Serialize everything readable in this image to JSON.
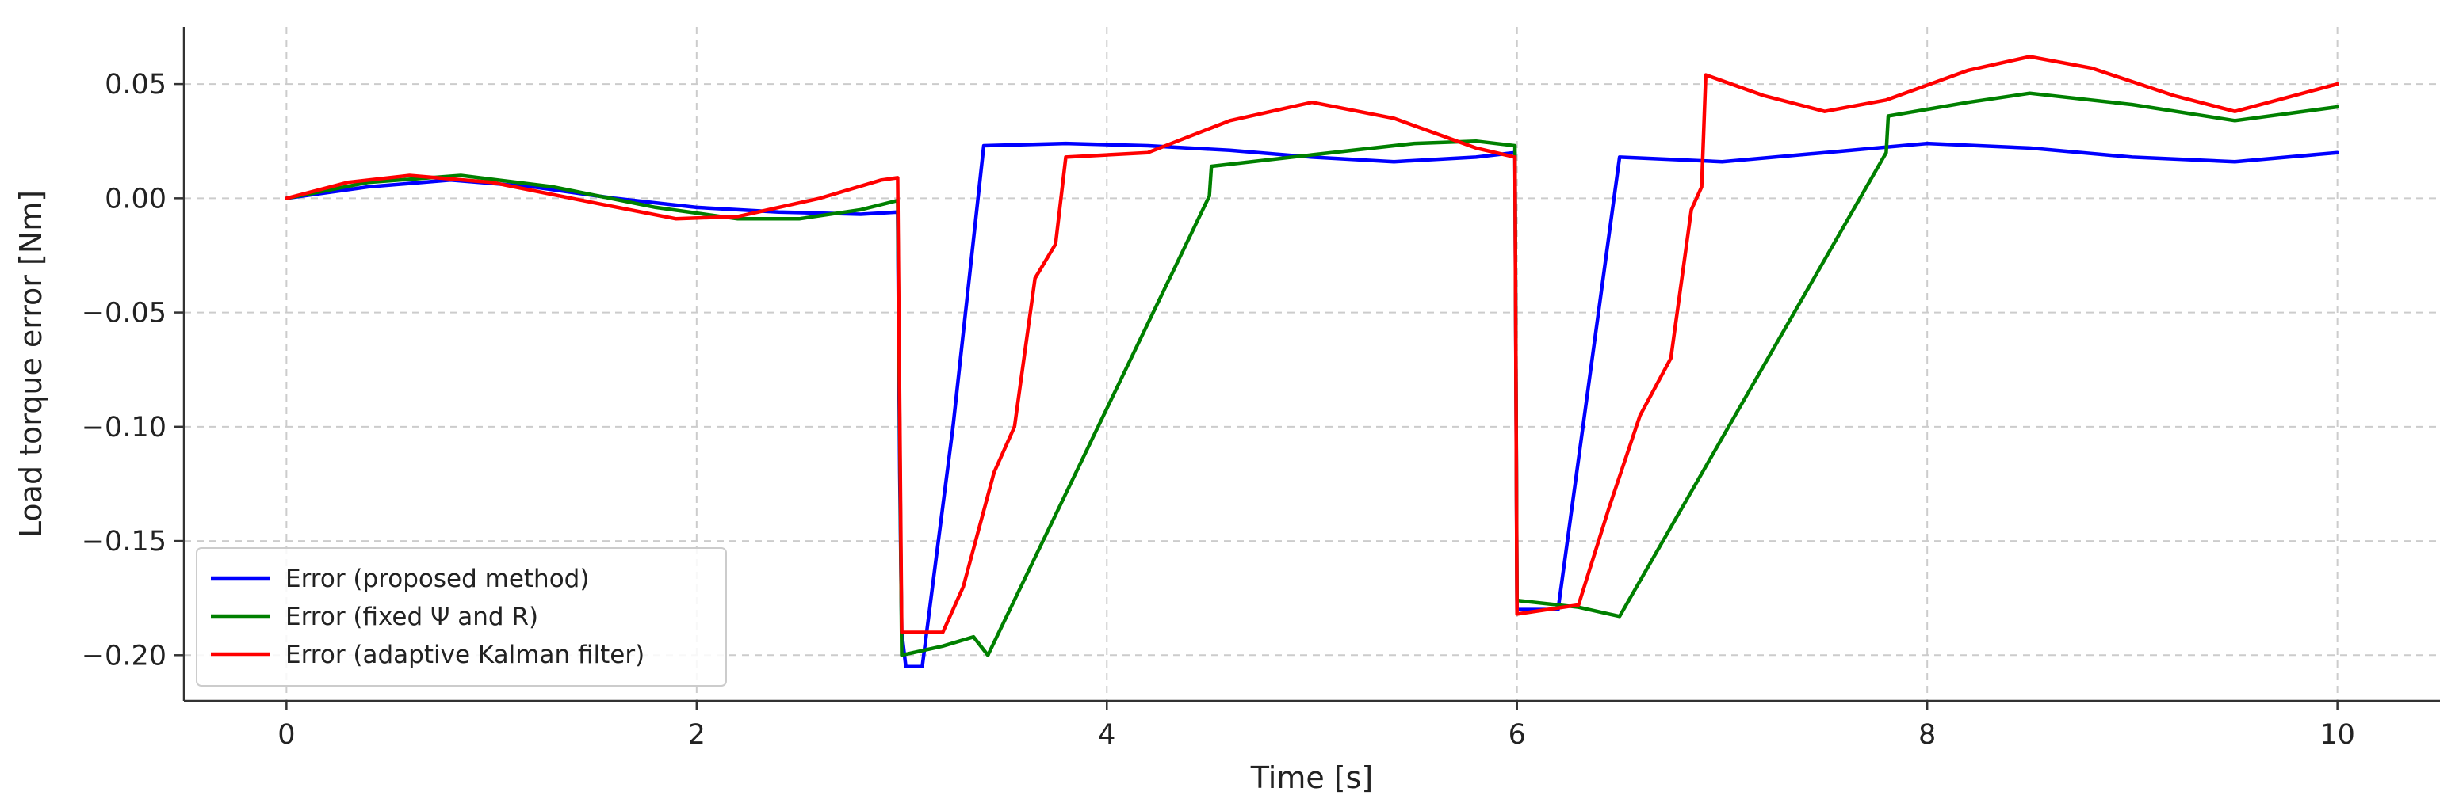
{
  "chart_data": {
    "type": "line",
    "title": "",
    "xlabel": "Time [s]",
    "ylabel": "Load torque error [Nm]",
    "xlim": [
      -0.5,
      10.5
    ],
    "ylim": [
      -0.22,
      0.075
    ],
    "xticks": [
      0,
      2,
      4,
      6,
      8,
      10
    ],
    "xtick_labels": [
      "0",
      "2",
      "4",
      "6",
      "8",
      "10"
    ],
    "yticks": [
      0.05,
      0.0,
      -0.05,
      -0.1,
      -0.15,
      -0.2
    ],
    "ytick_labels": [
      "0.05",
      "0.00",
      "−0.05",
      "−0.10",
      "−0.15",
      "−0.20"
    ],
    "grid": true,
    "legend_position": "lower-left",
    "series": [
      {
        "name": "Error (proposed method)",
        "color": "#0000ff",
        "points": [
          [
            0,
            0
          ],
          [
            0.4,
            0.005
          ],
          [
            0.8,
            0.008
          ],
          [
            1.2,
            0.005
          ],
          [
            1.6,
            0.0
          ],
          [
            2.0,
            -0.004
          ],
          [
            2.4,
            -0.006
          ],
          [
            2.8,
            -0.007
          ],
          [
            2.98,
            -0.006
          ],
          [
            2.99,
            -0.12
          ],
          [
            3.0,
            -0.19
          ],
          [
            3.02,
            -0.205
          ],
          [
            3.1,
            -0.205
          ],
          [
            3.25,
            -0.1
          ],
          [
            3.4,
            0.023
          ],
          [
            3.8,
            0.024
          ],
          [
            4.2,
            0.023
          ],
          [
            4.6,
            0.021
          ],
          [
            5.0,
            0.018
          ],
          [
            5.4,
            0.016
          ],
          [
            5.8,
            0.018
          ],
          [
            5.99,
            0.02
          ],
          [
            6.0,
            -0.18
          ],
          [
            6.2,
            -0.18
          ],
          [
            6.5,
            0.018
          ],
          [
            7.0,
            0.016
          ],
          [
            7.5,
            0.02
          ],
          [
            8.0,
            0.024
          ],
          [
            8.5,
            0.022
          ],
          [
            9.0,
            0.018
          ],
          [
            9.5,
            0.016
          ],
          [
            10.0,
            0.02
          ]
        ]
      },
      {
        "name": "Error (fixed Ψ and R)",
        "color": "#008000",
        "points": [
          [
            0,
            0
          ],
          [
            0.4,
            0.007
          ],
          [
            0.85,
            0.01
          ],
          [
            1.3,
            0.005
          ],
          [
            1.8,
            -0.004
          ],
          [
            2.2,
            -0.009
          ],
          [
            2.5,
            -0.009
          ],
          [
            2.8,
            -0.005
          ],
          [
            2.98,
            -0.001
          ],
          [
            3.0,
            -0.2
          ],
          [
            3.2,
            -0.196
          ],
          [
            3.35,
            -0.192
          ],
          [
            3.42,
            -0.2
          ],
          [
            4.5,
            0.001
          ],
          [
            4.51,
            0.014
          ],
          [
            5.0,
            0.019
          ],
          [
            5.5,
            0.024
          ],
          [
            5.8,
            0.025
          ],
          [
            5.99,
            0.023
          ],
          [
            6.0,
            -0.176
          ],
          [
            6.3,
            -0.179
          ],
          [
            6.5,
            -0.183
          ],
          [
            7.8,
            0.02
          ],
          [
            7.81,
            0.036
          ],
          [
            8.2,
            0.042
          ],
          [
            8.5,
            0.046
          ],
          [
            9.0,
            0.041
          ],
          [
            9.5,
            0.034
          ],
          [
            10.0,
            0.04
          ]
        ]
      },
      {
        "name": "Error (adaptive Kalman filter)",
        "color": "#ff0000",
        "points": [
          [
            0,
            0
          ],
          [
            0.3,
            0.007
          ],
          [
            0.6,
            0.01
          ],
          [
            1.0,
            0.007
          ],
          [
            1.5,
            -0.002
          ],
          [
            1.9,
            -0.009
          ],
          [
            2.2,
            -0.008
          ],
          [
            2.6,
            0.0
          ],
          [
            2.9,
            0.008
          ],
          [
            2.98,
            0.009
          ],
          [
            3.0,
            -0.19
          ],
          [
            3.1,
            -0.19
          ],
          [
            3.2,
            -0.19
          ],
          [
            3.3,
            -0.17
          ],
          [
            3.45,
            -0.12
          ],
          [
            3.55,
            -0.1
          ],
          [
            3.65,
            -0.035
          ],
          [
            3.75,
            -0.02
          ],
          [
            3.8,
            0.018
          ],
          [
            4.2,
            0.02
          ],
          [
            4.6,
            0.034
          ],
          [
            5.0,
            0.042
          ],
          [
            5.4,
            0.035
          ],
          [
            5.8,
            0.022
          ],
          [
            5.99,
            0.018
          ],
          [
            6.0,
            -0.182
          ],
          [
            6.3,
            -0.178
          ],
          [
            6.45,
            -0.135
          ],
          [
            6.6,
            -0.095
          ],
          [
            6.75,
            -0.07
          ],
          [
            6.85,
            -0.005
          ],
          [
            6.9,
            0.005
          ],
          [
            6.92,
            0.054
          ],
          [
            7.2,
            0.045
          ],
          [
            7.5,
            0.038
          ],
          [
            7.8,
            0.043
          ],
          [
            8.2,
            0.056
          ],
          [
            8.5,
            0.062
          ],
          [
            8.8,
            0.057
          ],
          [
            9.2,
            0.045
          ],
          [
            9.5,
            0.038
          ],
          [
            10.0,
            0.05
          ]
        ]
      }
    ]
  }
}
